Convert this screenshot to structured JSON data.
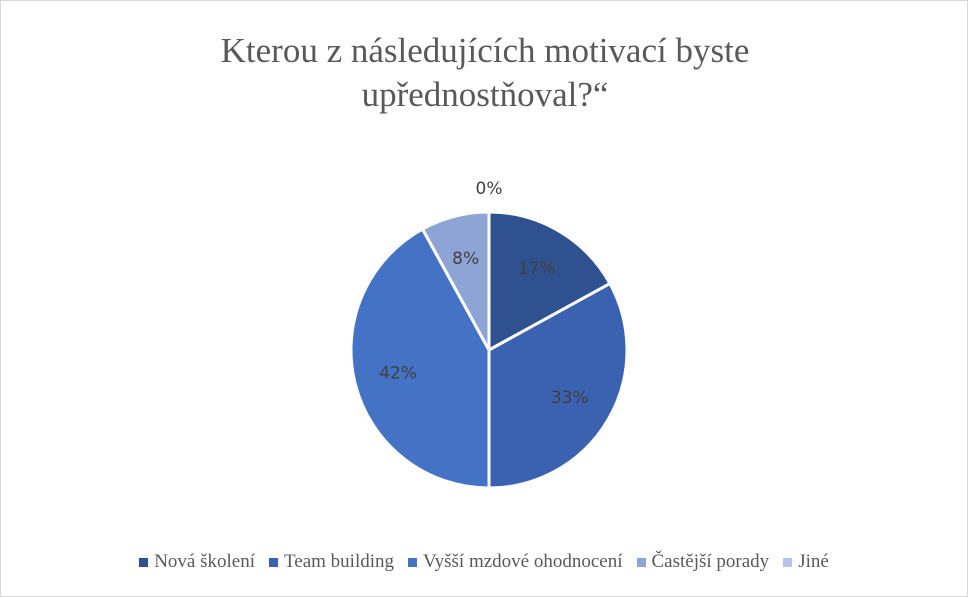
{
  "chart_data": {
    "type": "pie",
    "title": "Kterou z následujících motivací byste upřednostňoval?“",
    "categories": [
      "Nová školení",
      "Team building",
      "Vyšší mzdové ohodnocení",
      "Častější porady",
      "Jiné"
    ],
    "values": [
      17,
      33,
      42,
      8,
      0
    ],
    "value_labels": [
      "17%",
      "33%",
      "42%",
      "8%",
      "0%"
    ],
    "colors": [
      "#2f5190",
      "#3a62b0",
      "#4472c4",
      "#8fa4d6",
      "#b6c2e6"
    ],
    "legend": "bottom"
  }
}
